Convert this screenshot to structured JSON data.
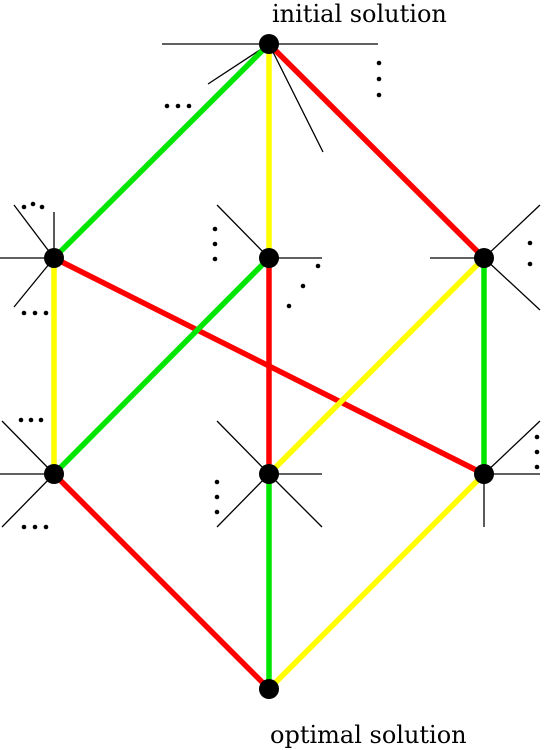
{
  "labels": {
    "top": "initial solution",
    "bottom": "optimal solution"
  },
  "colors": {
    "green": "#00e600",
    "yellow": "#ffff00",
    "red": "#ff0000",
    "node": "#000000",
    "thin": "#000000"
  },
  "nodes": [
    "initial",
    "A",
    "B",
    "C",
    "D",
    "E",
    "F",
    "optimal"
  ],
  "edges": [
    {
      "from": "initial",
      "to": "A",
      "color": "green"
    },
    {
      "from": "initial",
      "to": "B",
      "color": "yellow"
    },
    {
      "from": "initial",
      "to": "C",
      "color": "red"
    },
    {
      "from": "A",
      "to": "D",
      "color": "yellow"
    },
    {
      "from": "A",
      "to": "F",
      "color": "red"
    },
    {
      "from": "B",
      "to": "D",
      "color": "green"
    },
    {
      "from": "B",
      "to": "E",
      "color": "red"
    },
    {
      "from": "C",
      "to": "E",
      "color": "yellow"
    },
    {
      "from": "C",
      "to": "F",
      "color": "green"
    },
    {
      "from": "D",
      "to": "optimal",
      "color": "red"
    },
    {
      "from": "E",
      "to": "optimal",
      "color": "green"
    },
    {
      "from": "F",
      "to": "optimal",
      "color": "yellow"
    }
  ]
}
